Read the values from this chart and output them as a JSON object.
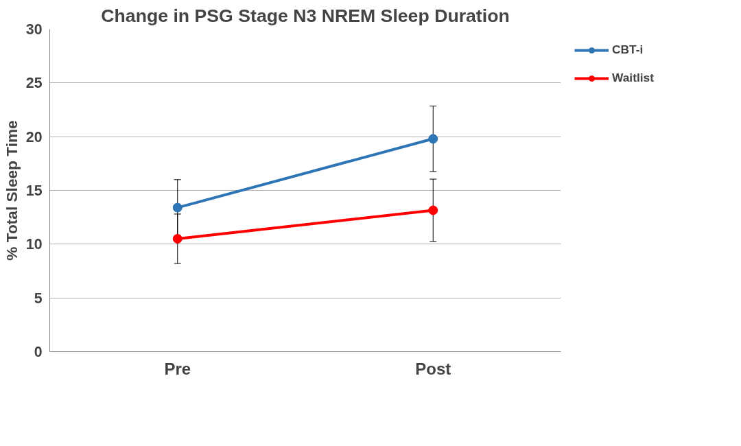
{
  "chart_data": {
    "type": "line",
    "title": "Change in PSG Stage N3 NREM Sleep Duration",
    "ylabel": "% Total Sleep Time",
    "categories": [
      "Pre",
      "Post"
    ],
    "series": [
      {
        "name": "CBT-i",
        "color": "#2e75b6",
        "values": [
          13.4,
          19.8
        ],
        "errors": [
          2.6,
          3.05
        ]
      },
      {
        "name": "Waitlist",
        "color": "#ff0000",
        "values": [
          10.5,
          13.15
        ],
        "errors": [
          2.3,
          2.9
        ]
      }
    ],
    "ylim": [
      0,
      30
    ],
    "yticks": [
      0,
      5,
      10,
      15,
      20,
      25,
      30
    ],
    "grid": "y",
    "legend": "right",
    "marker": "circle",
    "line_style": "solid"
  }
}
